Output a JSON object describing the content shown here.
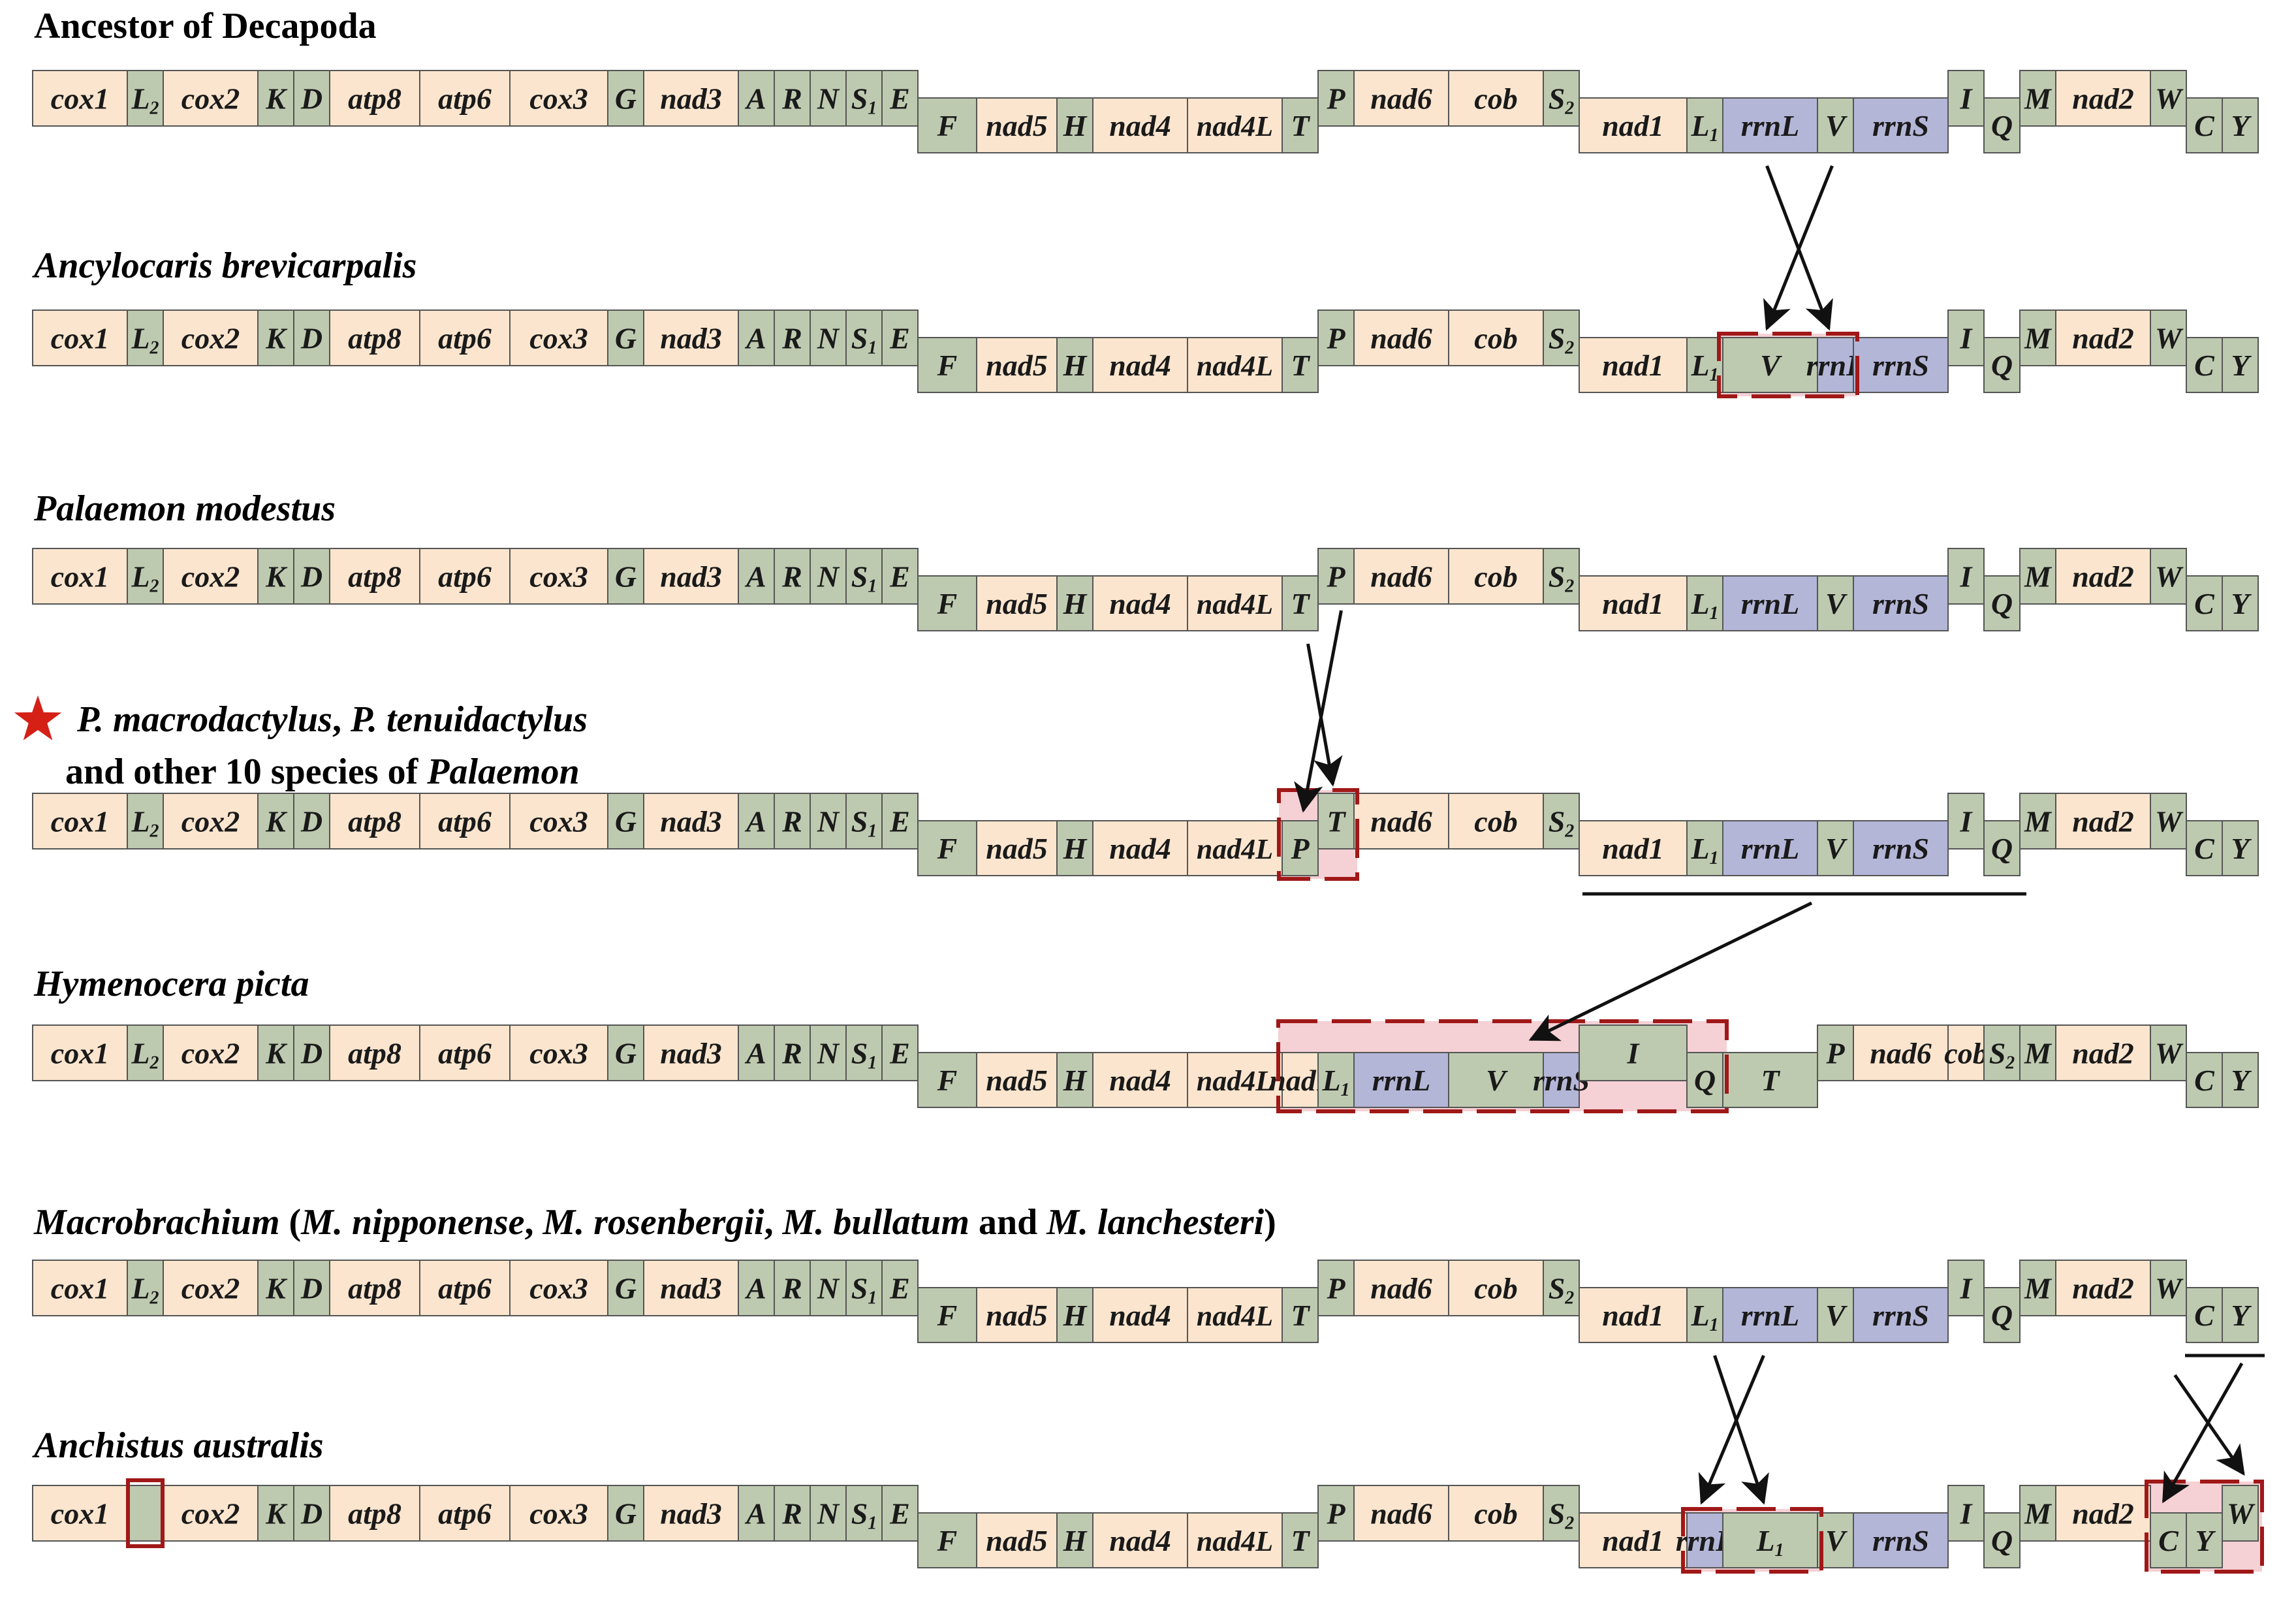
{
  "colors": {
    "protein": "#FBE5CE",
    "trna": "#BECAB0",
    "rrna": "#B4B6D8",
    "outline": "#555555",
    "highlight_fill": "#F3C8CC",
    "highlight_stroke": "#A01818",
    "star": "#D42015",
    "arrow": "#111111"
  },
  "icons": {
    "star": "star-icon"
  },
  "rows": [
    {
      "id": "ancestor",
      "title": "Ancestor of Decapoda",
      "genes": [
        "cox1",
        "L2",
        "cox2",
        "K",
        "D",
        "atp8",
        "atp6",
        "cox3",
        "G",
        "nad3",
        "A",
        "R",
        "N",
        "S1",
        "E",
        "F",
        "nad5",
        "H",
        "nad4",
        "nad4L",
        "T",
        "P",
        "nad6",
        "cob",
        "S2",
        "nad1",
        "L1",
        "rrnL",
        "V",
        "rrnS",
        "I",
        "Q",
        "M",
        "nad2",
        "W",
        "C",
        "Y"
      ]
    },
    {
      "id": "ancylocaris",
      "title": "Ancylocaris brevicarpalis",
      "genes": [
        "cox1",
        "L2",
        "cox2",
        "K",
        "D",
        "atp8",
        "atp6",
        "cox3",
        "G",
        "nad3",
        "A",
        "R",
        "N",
        "S1",
        "E",
        "F",
        "nad5",
        "H",
        "nad4",
        "nad4L",
        "T",
        "P",
        "nad6",
        "cob",
        "S2",
        "nad1",
        "L1",
        "V",
        "rrnL",
        "rrnS",
        "I",
        "Q",
        "M",
        "nad2",
        "W",
        "C",
        "Y"
      ]
    },
    {
      "id": "modestus",
      "title": "Palaemon modestus",
      "genes": [
        "cox1",
        "L2",
        "cox2",
        "K",
        "D",
        "atp8",
        "atp6",
        "cox3",
        "G",
        "nad3",
        "A",
        "R",
        "N",
        "S1",
        "E",
        "F",
        "nad5",
        "H",
        "nad4",
        "nad4L",
        "T",
        "P",
        "nad6",
        "cob",
        "S2",
        "nad1",
        "L1",
        "rrnL",
        "V",
        "rrnS",
        "I",
        "Q",
        "M",
        "nad2",
        "W",
        "C",
        "Y"
      ]
    },
    {
      "id": "macrodactylus",
      "title_line1_parts": [
        "P. macrodactylus",
        ", ",
        "P. tenuidactylus"
      ],
      "title_line2_parts": [
        "and other 10 species of ",
        "Palaemon"
      ],
      "genes": [
        "cox1",
        "L2",
        "cox2",
        "K",
        "D",
        "atp8",
        "atp6",
        "cox3",
        "G",
        "nad3",
        "A",
        "R",
        "N",
        "S1",
        "E",
        "F",
        "nad5",
        "H",
        "nad4",
        "nad4L",
        "P",
        "T",
        "nad6",
        "cob",
        "S2",
        "nad1",
        "L1",
        "rrnL",
        "V",
        "rrnS",
        "I",
        "Q",
        "M",
        "nad2",
        "W",
        "C",
        "Y"
      ]
    },
    {
      "id": "hymenocera",
      "title": "Hymenocera picta",
      "genes": [
        "cox1",
        "L2",
        "cox2",
        "K",
        "D",
        "atp8",
        "atp6",
        "cox3",
        "G",
        "nad3",
        "A",
        "R",
        "N",
        "S1",
        "E",
        "F",
        "nad5",
        "H",
        "nad4",
        "nad4L",
        "nad1",
        "L1",
        "rrnL",
        "V",
        "rrnS",
        "I",
        "Q",
        "T",
        "P",
        "nad6",
        "cob",
        "S2",
        "M",
        "nad2",
        "W",
        "C",
        "Y"
      ]
    },
    {
      "id": "macrobrachium",
      "title_parts": [
        "Macrobrachium",
        " (",
        "M. nipponense",
        ", ",
        "M. rosenbergii",
        ", ",
        "M. bullatum",
        " and ",
        "M.  lanchesteri",
        ")"
      ],
      "genes": [
        "cox1",
        "L2",
        "cox2",
        "K",
        "D",
        "atp8",
        "atp6",
        "cox3",
        "G",
        "nad3",
        "A",
        "R",
        "N",
        "S1",
        "E",
        "F",
        "nad5",
        "H",
        "nad4",
        "nad4L",
        "T",
        "P",
        "nad6",
        "cob",
        "S2",
        "nad1",
        "L1",
        "rrnL",
        "V",
        "rrnS",
        "I",
        "Q",
        "M",
        "nad2",
        "W",
        "C",
        "Y"
      ]
    },
    {
      "id": "anchistus",
      "title": "Anchistus australis",
      "genes": [
        "cox1",
        "",
        "cox2",
        "K",
        "D",
        "atp8",
        "atp6",
        "cox3",
        "G",
        "nad3",
        "A",
        "R",
        "N",
        "S1",
        "E",
        "F",
        "nad5",
        "H",
        "nad4",
        "nad4L",
        "T",
        "P",
        "nad6",
        "cob",
        "S2",
        "nad1",
        "rrnL",
        "L1",
        "V",
        "rrnS",
        "I",
        "Q",
        "M",
        "nad2",
        "C",
        "Y",
        "W"
      ]
    }
  ]
}
